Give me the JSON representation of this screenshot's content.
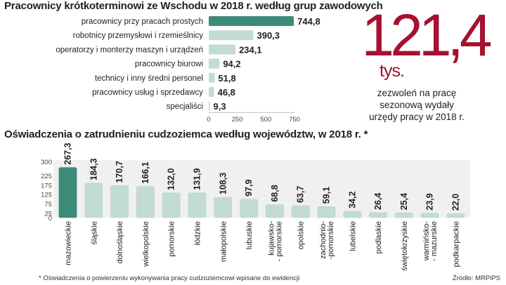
{
  "title_occupations": "Pracownicy krótkoterminowi ze Wschodu w 2018 r. według grup zawodowych",
  "title_regions": "Oświadczenia o zatrudnieniu cudzoziemca według województw, w 2018 r. *",
  "highlight": {
    "value": "121,4",
    "unit": "tys.",
    "description_lines": [
      "zezwoleń na pracę",
      "sezonową wydały",
      "urzędy pracy w 2018 r."
    ]
  },
  "footnote": "* Oświadczenia o powierzeniu wykonywania pracy cudzoziemcowi wpisane do ewidencji",
  "source": "Źródło: MRPiPS",
  "colors": {
    "accent_bar": "#3c8c79",
    "bar": "#c2dcd4",
    "track": "#e4e4e4",
    "highlight_red": "#a5112f"
  },
  "chart_data": [
    {
      "type": "bar",
      "orientation": "horizontal",
      "title": "Pracownicy krótkoterminowi ze Wschodu w 2018 r. według grup zawodowych",
      "categories": [
        "pracownicy przy pracach prostych",
        "robotnicy przemysłowi i rzemieślnicy",
        "operatorzy i monterzy maszyn i urządzeń",
        "pracownicy biurowi",
        "technicy i inny średni personel",
        "pracownicy usług i sprzedawcy",
        "specjaliści"
      ],
      "values": [
        744.8,
        390.3,
        234.1,
        94.2,
        51.8,
        46.8,
        9.3
      ],
      "value_labels": [
        "744,8",
        "390,3",
        "234,1",
        "94,2",
        "51,8",
        "46,8",
        "9,3"
      ],
      "xlim": [
        0,
        750
      ],
      "xticks": [
        "0",
        "250",
        "500",
        "750"
      ],
      "xtick_values": [
        0,
        250,
        500,
        750
      ],
      "highlight_index": 0
    },
    {
      "type": "bar",
      "orientation": "vertical",
      "title": "Oświadczenia o zatrudnieniu cudzoziemca według województw, w 2018 r. *",
      "categories": [
        "mazowieckie",
        "śląskie",
        "dolnośląskie",
        "wielkopolskie",
        "pomorskie",
        "łódzkie",
        "małopolskie",
        "lubuskie",
        "kujawsko- - pomorskie",
        "opolskie",
        "zachodnio- -pomorskie",
        "lubelskie",
        "podlaskie",
        "świętokrzyskie",
        "warmińsko- - mazurskie",
        "podkarpackie"
      ],
      "category_lines": [
        [
          "mazowieckie"
        ],
        [
          "śląskie"
        ],
        [
          "dolnośląskie"
        ],
        [
          "wielkopolskie"
        ],
        [
          "pomorskie"
        ],
        [
          "łódzkie"
        ],
        [
          "małopolskie"
        ],
        [
          "lubuskie"
        ],
        [
          "kujawsko-",
          "- pomorskie"
        ],
        [
          "opolskie"
        ],
        [
          "zachodnio-",
          "-pomorskie"
        ],
        [
          "lubelskie"
        ],
        [
          "podlaskie"
        ],
        [
          "świętokrzyskie"
        ],
        [
          "warmińsko-",
          "- mazurskie"
        ],
        [
          "podkarpackie"
        ]
      ],
      "values": [
        267.3,
        184.3,
        170.7,
        166.1,
        132.0,
        131.9,
        108.3,
        97.9,
        68.8,
        63.7,
        59.1,
        34.2,
        26.4,
        25.4,
        23.9,
        22.0
      ],
      "value_labels": [
        "267,3",
        "184,3",
        "170,7",
        "166,1",
        "132,0",
        "131,9",
        "108,3",
        "97,9",
        "68,8",
        "63,7",
        "59,1",
        "34,2",
        "26,4",
        "25,4",
        "23,9",
        "22,0"
      ],
      "ylim": [
        0,
        300
      ],
      "yticks": [
        "0",
        "25",
        "75",
        "125",
        "175",
        "225",
        "300"
      ],
      "ytick_values": [
        0,
        25,
        75,
        125,
        175,
        225,
        300
      ],
      "highlight_index": 0
    }
  ]
}
